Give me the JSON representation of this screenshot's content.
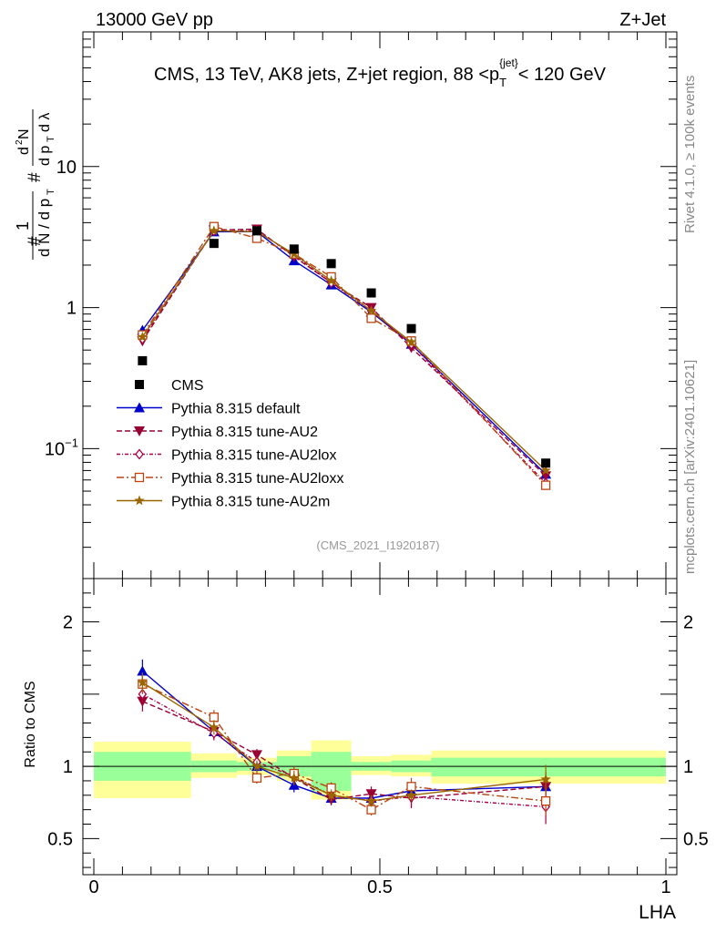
{
  "header": {
    "left": "13000 GeV pp",
    "right": "Z+Jet"
  },
  "side_labels": {
    "rivet": "Rivet 4.1.0, ≥ 100k events",
    "mcplots": "mcplots.cern.ch [arXiv:2401.10621]"
  },
  "watermark": "(CMS_2021_I1920187)",
  "chart_data": [
    {
      "type": "line",
      "panel": "main",
      "title": "CMS, 13 TeV, AK8 jets, Z+jet region, 88 <p_T^{jet}< 120 GeV",
      "title_parts": {
        "main": "CMS, 13 TeV, AK8 jets, Z+jet region, 88 <p",
        "sub": "T",
        "sup": "{jet}",
        "tail": "< 120 GeV"
      },
      "xlabel": "LHA",
      "ylabel": "1/dN/dp_T dN^2/dp_T dλ",
      "yscale": "log",
      "xlim": [
        0,
        1
      ],
      "ylim": [
        0.012,
        90
      ],
      "y_tick_labels": [
        {
          "value": 0.1,
          "base": "10",
          "exp": "−1"
        },
        {
          "value": 1,
          "base": "1",
          "exp": ""
        },
        {
          "value": 10,
          "base": "10",
          "exp": ""
        }
      ],
      "x": [
        0.085,
        0.21,
        0.285,
        0.35,
        0.415,
        0.485,
        0.555,
        0.79
      ],
      "data": {
        "name": "CMS",
        "y": [
          0.42,
          2.85,
          3.5,
          2.6,
          2.05,
          1.27,
          0.71,
          0.079
        ]
      },
      "series": [
        {
          "name": "Pythia 8.315 default",
          "color": "#0000cc",
          "dash": "",
          "marker": "triangle-up",
          "y": [
            0.69,
            3.45,
            3.45,
            2.15,
            1.45,
            0.93,
            0.55,
            0.066
          ]
        },
        {
          "name": "Pythia 8.315 tune-AU2",
          "color": "#990033",
          "dash": "6,3",
          "marker": "triangle-down",
          "y": [
            0.58,
            3.55,
            3.6,
            2.3,
            1.5,
            1.0,
            0.52,
            0.064
          ]
        },
        {
          "name": "Pythia 8.315 tune-AU2lox",
          "color": "#aa0044",
          "dash": "4,2,1,2",
          "marker": "diamond-open",
          "y": [
            0.6,
            3.5,
            3.5,
            2.35,
            1.5,
            0.95,
            0.55,
            0.057
          ]
        },
        {
          "name": "Pythia 8.315 tune-AU2loxx",
          "color": "#bb4411",
          "dash": "8,3,2,3",
          "marker": "square-open",
          "y": [
            0.64,
            3.75,
            3.1,
            2.4,
            1.65,
            0.84,
            0.58,
            0.055
          ]
        },
        {
          "name": "Pythia 8.315 tune-AU2m",
          "color": "#996600",
          "dash": "",
          "marker": "star",
          "y": [
            0.62,
            3.5,
            3.45,
            2.4,
            1.55,
            0.95,
            0.57,
            0.07
          ]
        }
      ]
    },
    {
      "type": "line",
      "panel": "ratio",
      "xlabel": "LHA",
      "ylabel": "Ratio to CMS",
      "xlim": [
        0,
        1
      ],
      "ylim": [
        0.25,
        2.3
      ],
      "x_tick_labels": [
        {
          "value": 0,
          "label": "0"
        },
        {
          "value": 0.5,
          "label": "0.5"
        },
        {
          "value": 1,
          "label": "1"
        }
      ],
      "y_tick_labels": [
        {
          "value": 0.5,
          "label": "0.5"
        },
        {
          "value": 1,
          "label": "1"
        },
        {
          "value": 2,
          "label": "2"
        }
      ],
      "bands": [
        {
          "x0": 0.0,
          "x1": 0.17,
          "y1": [
            0.9,
            1.1
          ],
          "y2": [
            0.78,
            1.17
          ]
        },
        {
          "x0": 0.17,
          "x1": 0.25,
          "y1": [
            0.96,
            1.04
          ],
          "y2": [
            0.92,
            1.09
          ]
        },
        {
          "x0": 0.25,
          "x1": 0.32,
          "y1": [
            0.97,
            1.03
          ],
          "y2": [
            0.94,
            1.06
          ]
        },
        {
          "x0": 0.32,
          "x1": 0.38,
          "y1": [
            0.93,
            1.07
          ],
          "y2": [
            0.9,
            1.11
          ]
        },
        {
          "x0": 0.38,
          "x1": 0.45,
          "y1": [
            0.83,
            1.1
          ],
          "y2": [
            0.77,
            1.18
          ]
        },
        {
          "x0": 0.45,
          "x1": 0.52,
          "y1": [
            0.97,
            1.03
          ],
          "y2": [
            0.94,
            1.07
          ]
        },
        {
          "x0": 0.52,
          "x1": 0.59,
          "y1": [
            0.96,
            1.04
          ],
          "y2": [
            0.93,
            1.08
          ]
        },
        {
          "x0": 0.59,
          "x1": 1.0,
          "y1": [
            0.93,
            1.06
          ],
          "y2": [
            0.88,
            1.11
          ]
        }
      ],
      "series": [
        {
          "name": "Pythia 8.315 default",
          "y": [
            1.66,
            1.24,
            1.0,
            0.87,
            0.78,
            0.78,
            0.83,
            0.86
          ],
          "err": [
            0.08,
            0.05,
            0.04,
            0.05,
            0.04,
            0.04,
            0.04,
            0.06
          ]
        },
        {
          "name": "Pythia 8.315 tune-AU2",
          "y": [
            1.45,
            1.24,
            1.08,
            0.92,
            0.77,
            0.81,
            0.78,
            0.86
          ],
          "err": [
            0.07,
            0.05,
            0.04,
            0.05,
            0.04,
            0.05,
            0.06,
            0.1
          ]
        },
        {
          "name": "Pythia 8.315 tune-AU2lox",
          "y": [
            1.5,
            1.23,
            1.03,
            0.93,
            0.8,
            0.76,
            0.79,
            0.72
          ],
          "err": [
            0.07,
            0.05,
            0.04,
            0.05,
            0.04,
            0.04,
            0.08,
            0.12
          ]
        },
        {
          "name": "Pythia 8.315 tune-AU2loxx",
          "y": [
            1.57,
            1.34,
            0.92,
            0.95,
            0.85,
            0.7,
            0.86,
            0.76
          ],
          "err": [
            0.07,
            0.05,
            0.04,
            0.05,
            0.04,
            0.04,
            0.06,
            0.1
          ]
        },
        {
          "name": "Pythia 8.315 tune-AU2m",
          "y": [
            1.58,
            1.27,
            1.0,
            0.92,
            0.8,
            0.76,
            0.8,
            0.91
          ],
          "err": [
            0.07,
            0.05,
            0.04,
            0.05,
            0.04,
            0.04,
            0.04,
            0.1
          ]
        }
      ]
    }
  ]
}
